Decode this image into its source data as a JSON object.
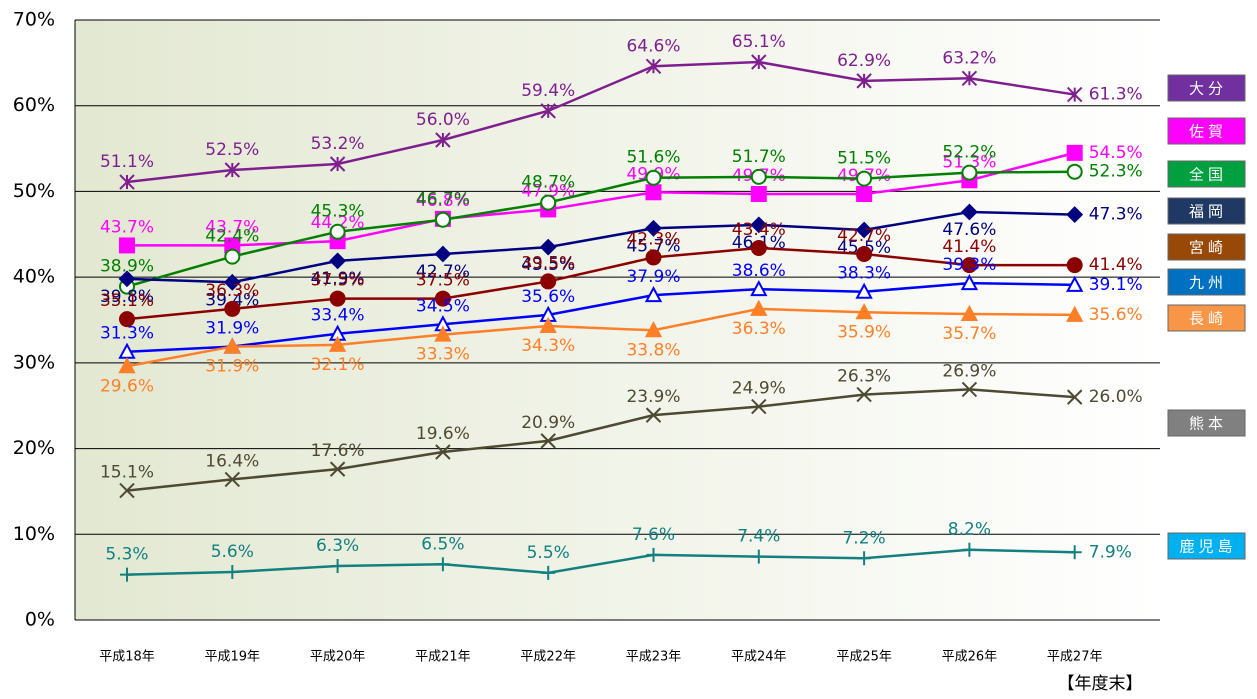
{
  "chart_data": {
    "type": "line",
    "x_label": "【年度末】",
    "categories": [
      "平成18年",
      "平成19年",
      "平成20年",
      "平成21年",
      "平成22年",
      "平成23年",
      "平成24年",
      "平成25年",
      "平成26年",
      "平成27年"
    ],
    "ylim": [
      0,
      70
    ],
    "yticks": [
      {
        "value": 0,
        "label": "0%"
      },
      {
        "value": 10,
        "label": "10%"
      },
      {
        "value": 20,
        "label": "20%"
      },
      {
        "value": 30,
        "label": "30%"
      },
      {
        "value": 40,
        "label": "40%"
      },
      {
        "value": 50,
        "label": "50%"
      },
      {
        "value": 60,
        "label": "60%"
      },
      {
        "value": 70,
        "label": "70%"
      }
    ],
    "grid": true,
    "series": [
      {
        "name": "大分",
        "color": "#7f1f8f",
        "legend_color": "#7030a0",
        "marker": "star",
        "values": [
          51.1,
          52.5,
          53.2,
          56.0,
          59.4,
          64.6,
          65.1,
          62.9,
          63.2,
          61.3
        ],
        "value_labels": [
          "51.1%",
          "52.5%",
          "53.2%",
          "56.0%",
          "59.4%",
          "64.6%",
          "65.1%",
          "62.9%",
          "63.2%",
          "61.3%"
        ]
      },
      {
        "name": "佐賀",
        "color": "#ff00ff",
        "legend_color": "#ff00ff",
        "marker": "square",
        "values": [
          43.7,
          43.7,
          44.2,
          46.8,
          47.9,
          49.9,
          49.7,
          49.7,
          51.3,
          54.5
        ],
        "value_labels": [
          "43.7%",
          "43.7%",
          "44.2%",
          "46.8%",
          "47.9%",
          "49.9%",
          "49.7%",
          "49.7%",
          "51.3%",
          "54.5%"
        ]
      },
      {
        "name": "全国",
        "color": "#008000",
        "legend_color": "#00a040",
        "marker": "circle-open",
        "values": [
          38.9,
          42.4,
          45.3,
          46.7,
          48.7,
          51.6,
          51.7,
          51.5,
          52.2,
          52.3
        ],
        "value_labels": [
          "38.9%",
          "42.4%",
          "45.3%",
          "46.7%",
          "48.7%",
          "51.6%",
          "51.7%",
          "51.5%",
          "52.2%",
          "52.3%"
        ]
      },
      {
        "name": "福岡",
        "color": "#000080",
        "legend_color": "#1f3864",
        "marker": "diamond",
        "values": [
          39.8,
          39.4,
          41.9,
          42.7,
          43.5,
          45.7,
          46.1,
          45.5,
          47.6,
          47.3
        ],
        "value_labels": [
          "39.8%",
          "39.4%",
          "41.9%",
          "42.7%",
          "43.5%",
          "45.7%",
          "46.1%",
          "45.5%",
          "47.6%",
          "47.3%"
        ]
      },
      {
        "name": "宮崎",
        "color": "#8b0000",
        "legend_color": "#984807",
        "marker": "circle",
        "values": [
          35.1,
          36.3,
          37.5,
          37.5,
          39.5,
          42.3,
          43.4,
          42.7,
          41.4,
          41.4
        ],
        "value_labels": [
          "35.1%",
          "36.3%",
          "37.5%",
          "37.5%",
          "39.5%",
          "42.3%",
          "43.4%",
          "42.7%",
          "41.4%",
          "41.4%"
        ]
      },
      {
        "name": "九州",
        "color": "#0000ff",
        "legend_color": "#0070c0",
        "marker": "triangle-open",
        "values": [
          31.3,
          31.9,
          33.4,
          34.5,
          35.6,
          37.9,
          38.6,
          38.3,
          39.3,
          39.1
        ],
        "value_labels": [
          "31.3%",
          "31.9%",
          "33.4%",
          "34.5%",
          "35.6%",
          "37.9%",
          "38.6%",
          "38.3%",
          "39.3%",
          "39.1%"
        ]
      },
      {
        "name": "長崎",
        "color": "#ff7f27",
        "legend_color": "#f79646",
        "marker": "triangle",
        "values": [
          29.6,
          31.9,
          32.1,
          33.3,
          34.3,
          33.8,
          36.3,
          35.9,
          35.7,
          35.6
        ],
        "value_labels": [
          "29.6%",
          "31.9%",
          "32.1%",
          "33.3%",
          "34.3%",
          "33.8%",
          "36.3%",
          "35.9%",
          "35.7%",
          "35.6%"
        ]
      },
      {
        "name": "熊本",
        "color": "#4d4a33",
        "legend_color": "#808080",
        "marker": "x",
        "values": [
          15.1,
          16.4,
          17.6,
          19.6,
          20.9,
          23.9,
          24.9,
          26.3,
          26.9,
          26.0
        ],
        "value_labels": [
          "15.1%",
          "16.4%",
          "17.6%",
          "19.6%",
          "20.9%",
          "23.9%",
          "24.9%",
          "26.3%",
          "26.9%",
          "26.0%"
        ]
      },
      {
        "name": "鹿児島",
        "color": "#138080",
        "legend_color": "#00b0f0",
        "marker": "plus",
        "values": [
          5.3,
          5.6,
          6.3,
          6.5,
          5.5,
          7.6,
          7.4,
          7.2,
          8.2,
          7.9
        ],
        "value_labels": [
          "5.3%",
          "5.6%",
          "6.3%",
          "6.5%",
          "5.5%",
          "7.6%",
          "7.4%",
          "7.2%",
          "8.2%",
          "7.9%"
        ]
      }
    ]
  }
}
